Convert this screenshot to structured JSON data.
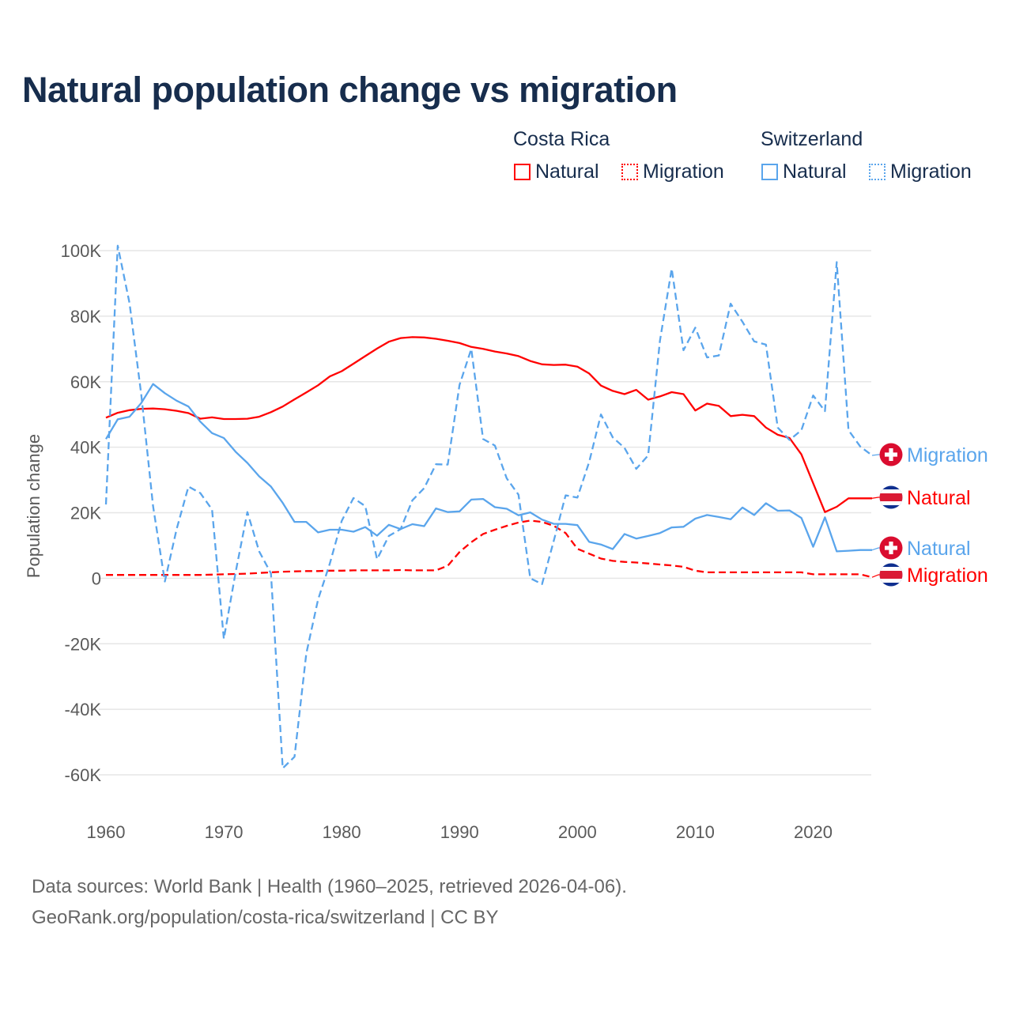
{
  "title": "Natural population change vs migration",
  "legend": {
    "groups": [
      {
        "country": "Costa Rica",
        "items": [
          {
            "label": "Natural",
            "style": "solid",
            "color": "#ff0000"
          },
          {
            "label": "Migration",
            "style": "dotted",
            "color": "#ff0000"
          }
        ]
      },
      {
        "country": "Switzerland",
        "items": [
          {
            "label": "Natural",
            "style": "solid",
            "color": "#5aa5ec"
          },
          {
            "label": "Migration",
            "style": "dotted",
            "color": "#5aa5ec"
          }
        ]
      }
    ]
  },
  "source": {
    "line1": "Data sources: World Bank | Health (1960–2025, retrieved 2026-04-06).",
    "line2": "GeoRank.org/population/costa-rica/switzerland | CC BY"
  },
  "chart_data": {
    "type": "line",
    "title": "Natural population change vs migration",
    "xlabel": "",
    "ylabel": "Population change",
    "xlim": [
      1960,
      2025
    ],
    "ylim": [
      -60000,
      100000
    ],
    "x_ticks": [
      1960,
      1970,
      1980,
      1990,
      2000,
      2010,
      2020
    ],
    "x_tick_labels": [
      "1960",
      "1970",
      "1980",
      "1990",
      "2000",
      "2010",
      "2020"
    ],
    "y_ticks": [
      100000,
      80000,
      60000,
      40000,
      20000,
      0,
      -20000,
      -40000,
      -60000
    ],
    "y_tick_labels": [
      "100K",
      "80K",
      "60K",
      "40K",
      "20K",
      "0",
      "-20K",
      "-40K",
      "-60K"
    ],
    "grid": true,
    "legend_position": "top-right",
    "x_start": 1960,
    "series": [
      {
        "name": "Costa Rica Natural",
        "end_label": "Natural",
        "flag": "costa-rica",
        "color": "#ff0000",
        "dash": false,
        "values": [
          49000,
          50500,
          51300,
          51700,
          51800,
          51600,
          51100,
          50400,
          48700,
          49100,
          48600,
          48600,
          48700,
          49300,
          50700,
          52400,
          54600,
          56700,
          58900,
          61600,
          63200,
          65500,
          67800,
          70100,
          72200,
          73300,
          73600,
          73500,
          73100,
          72500,
          71800,
          70600,
          70000,
          69200,
          68600,
          67800,
          66300,
          65300,
          65100,
          65200,
          64600,
          62500,
          58800,
          57200,
          56200,
          57500,
          54500,
          55500,
          56800,
          56200,
          51200,
          53300,
          52600,
          49500,
          49900,
          49500,
          46000,
          43800,
          42800,
          37800,
          29000,
          20200,
          21800,
          24400,
          24400,
          24400
        ]
      },
      {
        "name": "Costa Rica Migration",
        "end_label": "Migration",
        "flag": "costa-rica",
        "color": "#ff0000",
        "dash": true,
        "values": [
          1000,
          1000,
          1000,
          1000,
          1000,
          1000,
          1000,
          1000,
          1000,
          1100,
          1200,
          1300,
          1400,
          1600,
          1800,
          2000,
          2100,
          2200,
          2200,
          2300,
          2300,
          2400,
          2400,
          2400,
          2400,
          2500,
          2400,
          2400,
          2400,
          3800,
          8000,
          11000,
          13500,
          14800,
          16000,
          17000,
          17600,
          17200,
          16000,
          13800,
          9000,
          7500,
          6000,
          5300,
          5000,
          4800,
          4500,
          4200,
          3900,
          3500,
          2300,
          1800,
          1800,
          1800,
          1800,
          1800,
          1800,
          1800,
          1800,
          1800,
          1200,
          1200,
          1200,
          1200,
          1200,
          300
        ]
      },
      {
        "name": "Switzerland Natural",
        "end_label": "Natural",
        "flag": "switzerland",
        "color": "#5aa5ec",
        "dash": false,
        "values": [
          42500,
          48500,
          49300,
          53500,
          59300,
          56500,
          54200,
          52400,
          47800,
          44300,
          42800,
          38600,
          35200,
          31100,
          28000,
          23000,
          17200,
          17200,
          14000,
          14800,
          14800,
          14200,
          15600,
          13000,
          16300,
          15000,
          16500,
          15900,
          21300,
          20200,
          20400,
          24000,
          24200,
          21700,
          21200,
          19200,
          20100,
          17900,
          16600,
          16600,
          16200,
          11100,
          10300,
          8900,
          13500,
          12100,
          12900,
          13800,
          15500,
          15700,
          18200,
          19300,
          18700,
          18000,
          21600,
          19300,
          22900,
          20600,
          20700,
          18400,
          9600,
          18600,
          8200,
          8400,
          8600,
          8600
        ]
      },
      {
        "name": "Switzerland Migration",
        "end_label": "Migration",
        "flag": "switzerland",
        "color": "#5aa5ec",
        "dash": true,
        "values": [
          22500,
          101500,
          84000,
          56000,
          22000,
          -1000,
          15000,
          28000,
          26000,
          21000,
          -18500,
          1800,
          20200,
          8200,
          1500,
          -58000,
          -54500,
          -23000,
          -6500,
          4500,
          17500,
          24500,
          22000,
          5800,
          12900,
          15000,
          23800,
          27500,
          34800,
          34700,
          59000,
          70000,
          42500,
          40500,
          30500,
          25500,
          0,
          -1800,
          11500,
          25300,
          24600,
          35500,
          50000,
          43000,
          39800,
          33400,
          37500,
          72500,
          94500,
          69600,
          76500,
          67400,
          68000,
          83800,
          78300,
          72300,
          71300,
          46000,
          42200,
          45200,
          55800,
          51000,
          96500,
          45200,
          40200,
          37500
        ]
      }
    ]
  }
}
